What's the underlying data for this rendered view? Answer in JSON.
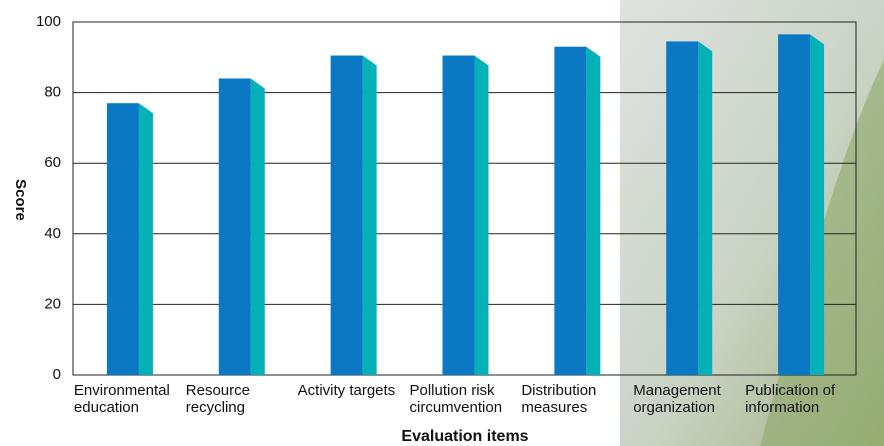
{
  "chart_data": {
    "type": "bar",
    "x_label": "Evaluation items",
    "y_label": "Score",
    "categories": [
      "Environmental education",
      "Resource recycling",
      "Activity targets",
      "Pollution risk circumvention",
      "Distribution measures",
      "Management organization",
      "Publication of information"
    ],
    "values": [
      77,
      84,
      90.5,
      90.5,
      93,
      94.5,
      96.5
    ],
    "color": "#0a78c2",
    "side_color": "#05b1b8",
    "ylim": [
      0,
      100
    ],
    "yticks": [
      0,
      20,
      40,
      60,
      80,
      100
    ],
    "grid": true
  }
}
